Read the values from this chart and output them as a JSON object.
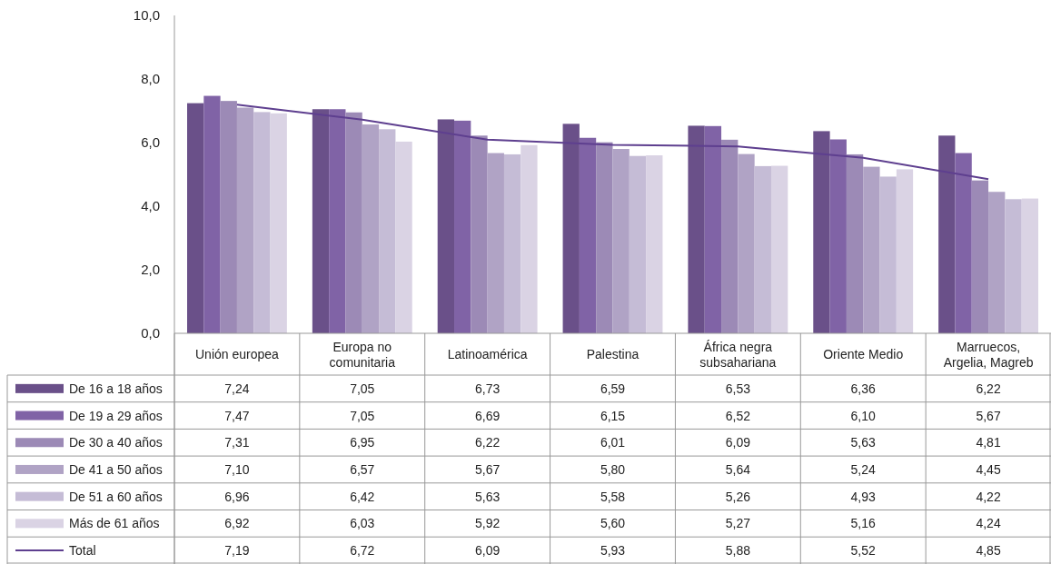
{
  "chart_data": {
    "type": "bar",
    "categories": [
      "Unión europea",
      "Europa no comunitaria",
      "Latinoamérica",
      "Palestina",
      "África negra subsahariana",
      "Oriente Medio",
      "Marruecos, Argelia, Magreb"
    ],
    "ylim": [
      0,
      10
    ],
    "yticks": [
      {
        "value": 0,
        "label": "0,0"
      },
      {
        "value": 2,
        "label": "2,0"
      },
      {
        "value": 4,
        "label": "4,0"
      },
      {
        "value": 6,
        "label": "6,0"
      },
      {
        "value": 8,
        "label": "8,0"
      },
      {
        "value": 10,
        "label": "10,0"
      }
    ],
    "legend": "bottom left",
    "series": [
      {
        "name": "De 16 a 18 años",
        "color": "#6a5089",
        "values": [
          7.24,
          7.05,
          6.73,
          6.59,
          6.53,
          6.36,
          6.22
        ],
        "value_labels": [
          "7,24",
          "7,05",
          "6,73",
          "6,59",
          "6,53",
          "6,36",
          "6,22"
        ]
      },
      {
        "name": "De 19 a 29 años",
        "color": "#8063a6",
        "values": [
          7.47,
          7.05,
          6.69,
          6.15,
          6.52,
          6.1,
          5.67
        ],
        "value_labels": [
          "7,47",
          "7,05",
          "6,69",
          "6,15",
          "6,52",
          "6,10",
          "5,67"
        ]
      },
      {
        "name": "De 30 a 40 años",
        "color": "#9c8ab6",
        "values": [
          7.31,
          6.95,
          6.22,
          6.01,
          6.09,
          5.63,
          4.81
        ],
        "value_labels": [
          "7,31",
          "6,95",
          "6,22",
          "6,01",
          "6,09",
          "5,63",
          "4,81"
        ]
      },
      {
        "name": "De 41 a 50 años",
        "color": "#b0a3c5",
        "values": [
          7.1,
          6.57,
          5.67,
          5.8,
          5.64,
          5.24,
          4.45
        ],
        "value_labels": [
          "7,10",
          "6,57",
          "5,67",
          "5,80",
          "5,64",
          "5,24",
          "4,45"
        ]
      },
      {
        "name": "De 51 a 60 años",
        "color": "#c5bcd6",
        "values": [
          6.96,
          6.42,
          5.63,
          5.58,
          5.26,
          4.93,
          4.22
        ],
        "value_labels": [
          "6,96",
          "6,42",
          "5,63",
          "5,58",
          "5,26",
          "4,93",
          "4,22"
        ]
      },
      {
        "name": "Más de 61 años",
        "color": "#dad3e4",
        "values": [
          6.92,
          6.03,
          5.92,
          5.6,
          5.27,
          5.16,
          4.24
        ],
        "value_labels": [
          "6,92",
          "6,03",
          "5,92",
          "5,60",
          "5,27",
          "5,16",
          "4,24"
        ]
      },
      {
        "name": "Total",
        "type": "line",
        "color": "#5e3f8f",
        "values": [
          7.19,
          6.72,
          6.09,
          5.93,
          5.88,
          5.52,
          4.85
        ],
        "value_labels": [
          "7,19",
          "6,72",
          "6,09",
          "5,93",
          "5,88",
          "5,52",
          "4,85"
        ]
      }
    ]
  }
}
